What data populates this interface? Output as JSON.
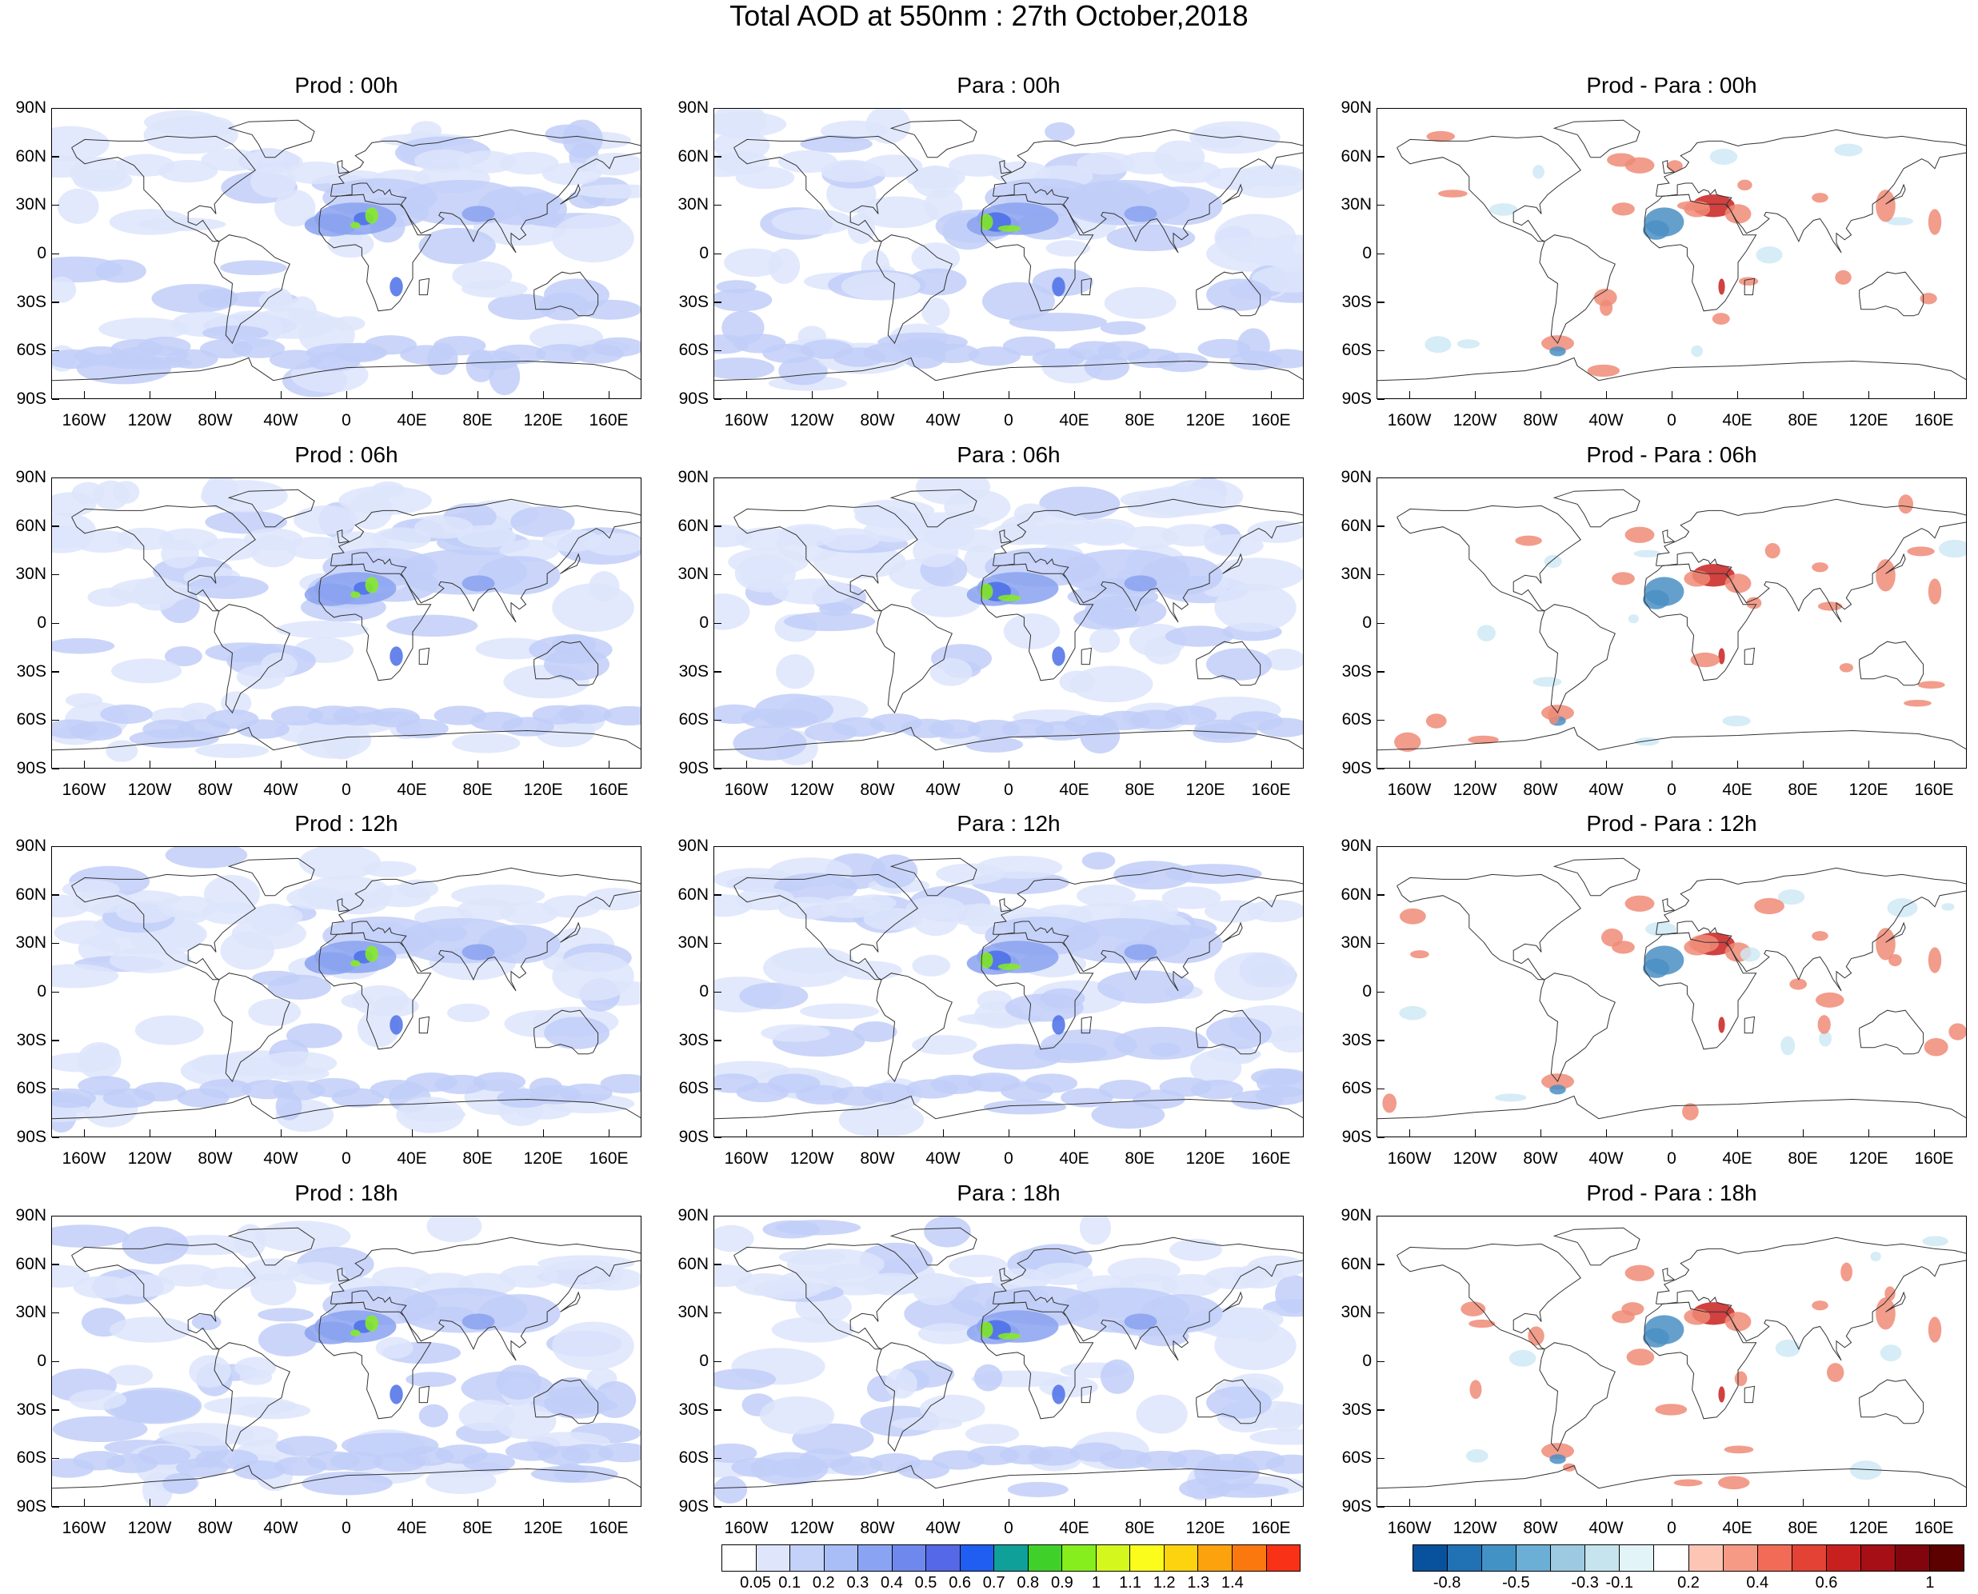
{
  "title": "Total AOD at 550nm : 27th October,2018",
  "rows": [
    {
      "hour": "00h",
      "titles": [
        "Prod : 00h",
        "Para : 00h",
        "Prod - Para : 00h"
      ]
    },
    {
      "hour": "06h",
      "titles": [
        "Prod : 06h",
        "Para : 06h",
        "Prod - Para : 06h"
      ]
    },
    {
      "hour": "12h",
      "titles": [
        "Prod : 12h",
        "Para : 12h",
        "Prod - Para : 12h"
      ]
    },
    {
      "hour": "18h",
      "titles": [
        "Prod : 18h",
        "Para : 18h",
        "Prod - Para : 18h"
      ]
    }
  ],
  "lat_labels": [
    "90N",
    "60N",
    "30N",
    "0",
    "30S",
    "60S",
    "90S"
  ],
  "lon_labels": [
    "160W",
    "120W",
    "80W",
    "40W",
    "0",
    "40E",
    "80E",
    "120E",
    "160E"
  ],
  "lon_values": [
    -160,
    -120,
    -80,
    -40,
    0,
    40,
    80,
    120,
    160
  ],
  "lat_values": [
    90,
    60,
    30,
    0,
    -30,
    -60,
    -90
  ],
  "aod_colorbar": {
    "labels": [
      "0.05",
      "0.1",
      "0.2",
      "0.3",
      "0.4",
      "0.5",
      "0.6",
      "0.7",
      "0.8",
      "0.9",
      "1",
      "1.1",
      "1.2",
      "1.3",
      "1.4"
    ],
    "colors": [
      "#ffffff",
      "#dfe6fb",
      "#c4d2fa",
      "#a9bdf7",
      "#8aa4f3",
      "#6f88ee",
      "#5568e8",
      "#1f5ef0",
      "#0fa09a",
      "#3fd12a",
      "#86ee1c",
      "#d4f81d",
      "#fcfc1c",
      "#fdd20f",
      "#fca20c",
      "#fb780f",
      "#f93116"
    ]
  },
  "diff_colorbar": {
    "labels": [
      "-0.8",
      "-0.5",
      "-0.3",
      "-0.1",
      "0.2",
      "0.4",
      "0.6",
      "1"
    ],
    "colors": [
      "#08519c",
      "#2171b5",
      "#4292c6",
      "#6baed6",
      "#9ecae1",
      "#c6e4ee",
      "#e3f4f8",
      "#ffffff",
      "#fcc5b4",
      "#f79a85",
      "#f26b57",
      "#e34234",
      "#c8201f",
      "#a50f15",
      "#80050c",
      "#5c0000"
    ]
  },
  "map_colors": {
    "aod_light": "#dde5fb",
    "aod_mid": "#c1cef8",
    "aod_high": "#8aa2f0",
    "aod_peak": "#4b6fe6",
    "aod_dust": "#86ee1c",
    "diff_red": "#f08b77",
    "diff_darkred": "#c8201f",
    "diff_blue": "#4a8fc4",
    "diff_lightblue": "#cfe9f4",
    "coastline": "#333333"
  }
}
